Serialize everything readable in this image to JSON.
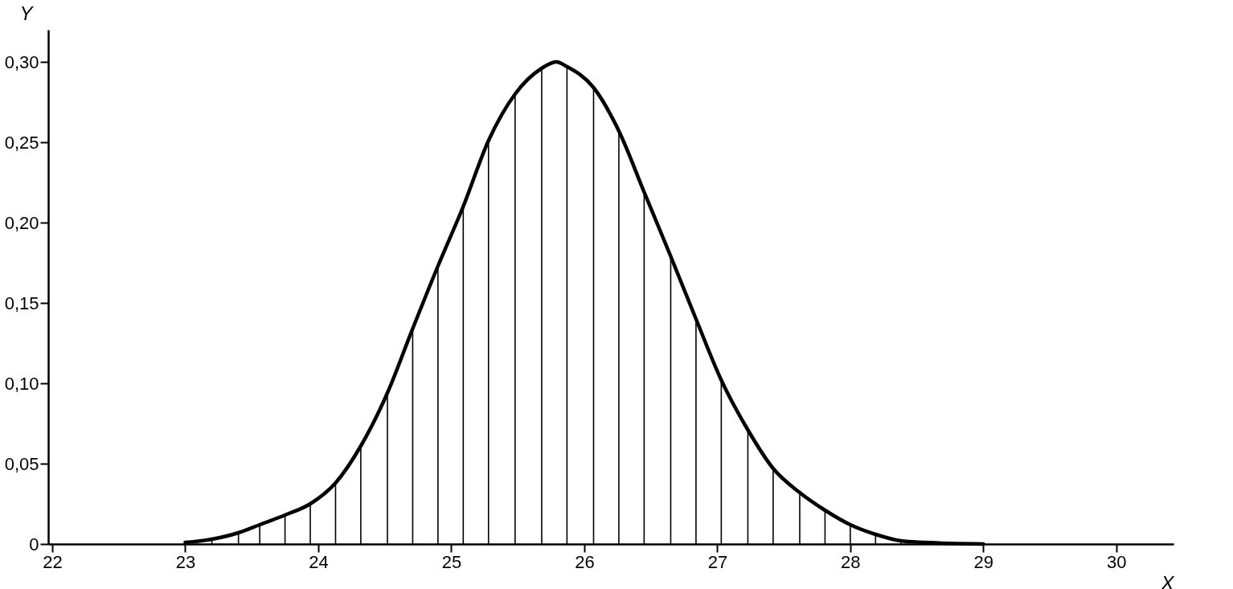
{
  "chart_data": {
    "type": "line",
    "xlabel": "X",
    "ylabel": "Y",
    "x": [
      23.0,
      23.2,
      23.4,
      23.56,
      23.75,
      23.94,
      24.13,
      24.32,
      24.52,
      24.71,
      24.9,
      25.09,
      25.28,
      25.48,
      25.68,
      25.79,
      25.87,
      26.07,
      26.26,
      26.45,
      26.65,
      26.84,
      27.03,
      27.23,
      27.42,
      27.62,
      27.81,
      28.0,
      28.19,
      28.38,
      28.56,
      29.0
    ],
    "series": [
      {
        "color": "#000000",
        "values": [
          0.001,
          0.003,
          0.007,
          0.012,
          0.018,
          0.025,
          0.038,
          0.061,
          0.094,
          0.134,
          0.173,
          0.21,
          0.251,
          0.28,
          0.296,
          0.3,
          0.297,
          0.284,
          0.257,
          0.219,
          0.179,
          0.14,
          0.102,
          0.071,
          0.047,
          0.032,
          0.021,
          0.012,
          0.006,
          0.002,
          0.001,
          0.0
        ]
      },
      {
        "type": "bar",
        "color": "#000000",
        "x": [
          23.2,
          23.4,
          23.56,
          23.75,
          23.94,
          24.13,
          24.32,
          24.52,
          24.71,
          24.9,
          25.09,
          25.28,
          25.48,
          25.68,
          25.87,
          26.07,
          26.26,
          26.45,
          26.65,
          26.84,
          27.03,
          27.23,
          27.42,
          27.62,
          27.81,
          28.0,
          28.19,
          28.38
        ],
        "values": [
          0.003,
          0.007,
          0.012,
          0.018,
          0.025,
          0.038,
          0.061,
          0.094,
          0.134,
          0.173,
          0.21,
          0.251,
          0.28,
          0.296,
          0.297,
          0.284,
          0.257,
          0.219,
          0.179,
          0.14,
          0.102,
          0.071,
          0.047,
          0.032,
          0.021,
          0.012,
          0.006,
          0.002
        ]
      }
    ],
    "xlim": [
      22,
      30.4
    ],
    "ylim": [
      0,
      0.32
    ],
    "xticks": [
      22,
      23,
      24,
      25,
      26,
      27,
      28,
      29,
      30
    ],
    "yticks": [
      0,
      {
        "value": 0.05,
        "label": "0,05"
      },
      {
        "value": 0.1,
        "label": "0,10"
      },
      {
        "value": 0.15,
        "label": "0,15"
      },
      {
        "value": 0.2,
        "label": "0,20"
      },
      {
        "value": 0.25,
        "label": "0,25"
      },
      {
        "value": 0.3,
        "label": "0,30"
      }
    ],
    "grid": false,
    "marker": "none",
    "line_style": "solid"
  }
}
